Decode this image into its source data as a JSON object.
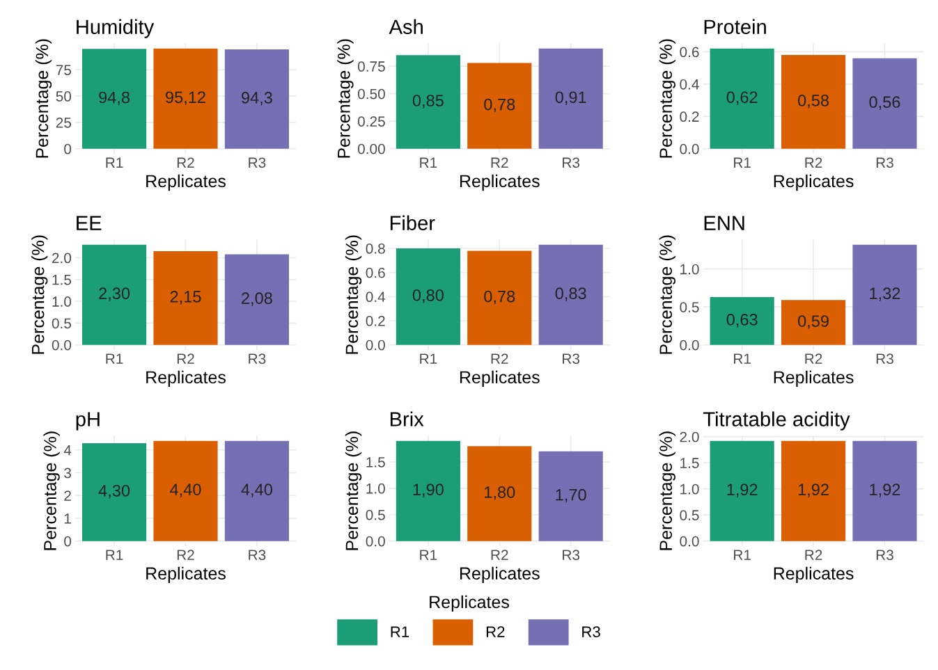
{
  "chart_data": [
    {
      "type": "bar",
      "title": "Humidity",
      "xlabel": "Replicates",
      "ylabel": "Percentage (%)",
      "categories": [
        "R1",
        "R2",
        "R3"
      ],
      "series": [
        {
          "name": "R1",
          "color": "#1b9e77",
          "values": [
            94.8,
            null,
            null
          ],
          "value_labels": [
            "94,8",
            null,
            null
          ]
        },
        {
          "name": "R2",
          "color": "#d95f02",
          "values": [
            null,
            95.12,
            null
          ],
          "value_labels": [
            null,
            "95,12",
            null
          ]
        },
        {
          "name": "R3",
          "color": "#7570b3",
          "values": [
            null,
            null,
            94.3
          ],
          "value_labels": [
            null,
            null,
            "94,3"
          ]
        }
      ],
      "ylim": [
        -4.76,
        99.88
      ],
      "yticks": [
        0,
        25,
        50,
        75
      ],
      "grid": true,
      "legend": "bottom",
      "legend_title": "Replicates"
    },
    {
      "type": "bar",
      "title": "Ash",
      "xlabel": "Replicates",
      "ylabel": "Percentage (%)",
      "categories": [
        "R1",
        "R2",
        "R3"
      ],
      "values": [
        0.85,
        0.78,
        0.91
      ],
      "value_labels": [
        "0,85",
        "0,78",
        "0,91"
      ],
      "colors": [
        "#1b9e77",
        "#d95f02",
        "#7570b3"
      ],
      "ylim": [
        -0.046,
        0.956
      ],
      "yticks": [
        {
          "value": 0,
          "label": "0.00"
        },
        {
          "value": 0.25,
          "label": "0.25"
        },
        {
          "value": 0.5,
          "label": "0.50"
        },
        {
          "value": 0.75,
          "label": "0.75"
        }
      ],
      "grid": true
    },
    {
      "type": "bar",
      "title": "Protein",
      "xlabel": "Replicates",
      "ylabel": "Percentage (%)",
      "categories": [
        "R1",
        "R2",
        "R3"
      ],
      "values": [
        0.62,
        0.58,
        0.56
      ],
      "value_labels": [
        "0,62",
        "0,58",
        "0,56"
      ],
      "colors": [
        "#1b9e77",
        "#d95f02",
        "#7570b3"
      ],
      "ylim": [
        -0.031,
        0.651
      ],
      "yticks": [
        {
          "value": 0,
          "label": "0.0"
        },
        0.2,
        0.4,
        0.6
      ],
      "grid": true
    },
    {
      "type": "bar",
      "title": "EE",
      "xlabel": "Replicates",
      "ylabel": "Percentage (%)",
      "categories": [
        "R1",
        "R2",
        "R3"
      ],
      "values": [
        2.3,
        2.15,
        2.08
      ],
      "value_labels": [
        "2,30",
        "2,15",
        "2,08"
      ],
      "colors": [
        "#1b9e77",
        "#d95f02",
        "#7570b3"
      ],
      "ylim": [
        -0.115,
        2.415
      ],
      "yticks": [
        {
          "value": 0,
          "label": "0.0"
        },
        0.5,
        {
          "value": 1,
          "label": "1.0"
        },
        1.5,
        {
          "value": 2,
          "label": "2.0"
        }
      ],
      "grid": true
    },
    {
      "type": "bar",
      "title": "Fiber",
      "xlabel": "Replicates",
      "ylabel": "Percentage (%)",
      "categories": [
        "R1",
        "R2",
        "R3"
      ],
      "values": [
        0.8,
        0.78,
        0.83
      ],
      "value_labels": [
        "0,80",
        "0,78",
        "0,83"
      ],
      "colors": [
        "#1b9e77",
        "#d95f02",
        "#7570b3"
      ],
      "ylim": [
        -0.042,
        0.872
      ],
      "yticks": [
        {
          "value": 0,
          "label": "0.0"
        },
        0.2,
        0.4,
        0.6,
        0.8
      ],
      "grid": true
    },
    {
      "type": "bar",
      "title": "ENN",
      "xlabel": "Replicates",
      "ylabel": "Percentage (%)",
      "categories": [
        "R1",
        "R2",
        "R3"
      ],
      "values": [
        0.63,
        0.59,
        1.32
      ],
      "value_labels": [
        "0,63",
        "0,59",
        "1,32"
      ],
      "colors": [
        "#1b9e77",
        "#d95f02",
        "#7570b3"
      ],
      "ylim": [
        -0.066,
        1.386
      ],
      "yticks": [
        {
          "value": 0,
          "label": "0.0"
        },
        0.5,
        {
          "value": 1,
          "label": "1.0"
        }
      ],
      "grid": true
    },
    {
      "type": "bar",
      "title": "pH",
      "xlabel": "Replicates",
      "ylabel": "Percentage (%)",
      "categories": [
        "R1",
        "R2",
        "R3"
      ],
      "values": [
        4.3,
        4.4,
        4.4
      ],
      "value_labels": [
        "4,30",
        "4,40",
        "4,40"
      ],
      "colors": [
        "#1b9e77",
        "#d95f02",
        "#7570b3"
      ],
      "ylim": [
        -0.22,
        4.62
      ],
      "yticks": [
        0,
        1,
        2,
        3,
        4
      ],
      "grid": true
    },
    {
      "type": "bar",
      "title": "Brix",
      "xlabel": "Replicates",
      "ylabel": "Percentage (%)",
      "categories": [
        "R1",
        "R2",
        "R3"
      ],
      "values": [
        1.9,
        1.8,
        1.7
      ],
      "value_labels": [
        "1,90",
        "1,80",
        "1,70"
      ],
      "colors": [
        "#1b9e77",
        "#d95f02",
        "#7570b3"
      ],
      "ylim": [
        -0.095,
        1.995
      ],
      "yticks": [
        {
          "value": 0,
          "label": "0.0"
        },
        0.5,
        {
          "value": 1,
          "label": "1.0"
        },
        1.5
      ],
      "grid": true
    },
    {
      "type": "bar",
      "title": "Titratable acidity",
      "xlabel": "Replicates",
      "ylabel": "Percentage (%)",
      "categories": [
        "R1",
        "R2",
        "R3"
      ],
      "values": [
        1.92,
        1.92,
        1.92
      ],
      "value_labels": [
        "1,92",
        "1,92",
        "1,92"
      ],
      "colors": [
        "#1b9e77",
        "#d95f02",
        "#7570b3"
      ],
      "ylim": [
        -0.096,
        2.016
      ],
      "yticks": [
        {
          "value": 0,
          "label": "0.0"
        },
        0.5,
        {
          "value": 1,
          "label": "1.0"
        },
        1.5,
        {
          "value": 2,
          "label": "2.0"
        }
      ],
      "grid": true
    }
  ]
}
